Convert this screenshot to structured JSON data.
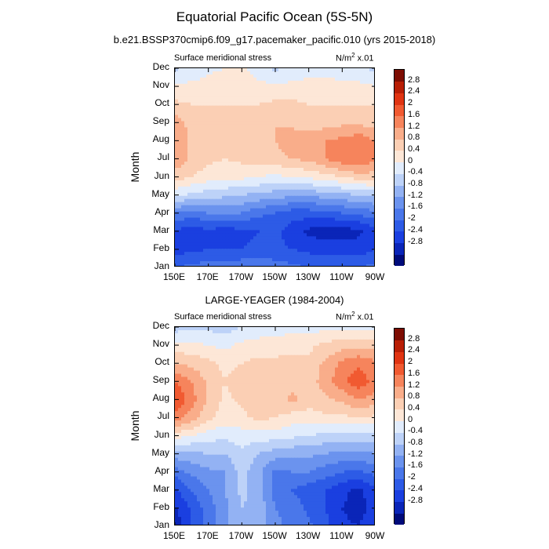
{
  "title": "Equatorial Pacific Ocean (5S-5N)",
  "colors": {
    "levels": [
      -3.2,
      -2.8,
      -2.4,
      -2.0,
      -1.6,
      -1.2,
      -0.8,
      -0.4,
      0.0,
      0.4,
      0.8,
      1.2,
      1.6,
      2.0,
      2.4,
      2.8,
      3.2
    ],
    "fills": [
      "#000b7a",
      "#0a25b8",
      "#1a3fe0",
      "#2d5be6",
      "#4a77ea",
      "#6b93ee",
      "#93b2f3",
      "#bdd2f8",
      "#e1ecfc",
      "#fde7d7",
      "#fbcfb4",
      "#f9ad8a",
      "#f6845c",
      "#f15a31",
      "#e03412",
      "#b81e05",
      "#7d0d02"
    ]
  },
  "chart_data": [
    {
      "type": "heatmap",
      "title": "b.e21.BSSP370cmip6.f09_g17.pacemaker_pacific.010 (yrs 2015-2018)",
      "left_label": "Surface meridional stress",
      "right_label_base": "N/m",
      "right_label_sup": "2",
      "right_label_tail": " x.01",
      "ylabel": "Month",
      "x_tick_labels": [
        "150E",
        "170E",
        "170W",
        "150W",
        "130W",
        "110W",
        "90W"
      ],
      "y_tick_labels": [
        "Jan",
        "Feb",
        "Mar",
        "Apr",
        "May",
        "Jun",
        "Jul",
        "Aug",
        "Sep",
        "Oct",
        "Nov",
        "Dec"
      ],
      "colorbar_labels": [
        "-2.8",
        "-2.4",
        "-2",
        "-1.6",
        "-1.2",
        "-0.8",
        "-0.4",
        "0",
        "0.4",
        "0.8",
        "1.2",
        "1.6",
        "2",
        "2.4",
        "2.8"
      ],
      "x": [
        150,
        160,
        170,
        180,
        190,
        200,
        210,
        220,
        230,
        240,
        250,
        260,
        270
      ],
      "y": [
        "Jan",
        "Feb",
        "Mar",
        "Apr",
        "May",
        "Jun",
        "Jul",
        "Aug",
        "Sep",
        "Oct",
        "Nov",
        "Dec"
      ],
      "z": [
        [
          -1.6,
          -1.5,
          -1.4,
          -1.4,
          -1.3,
          -1.3,
          -1.4,
          -1.5,
          -1.6,
          -1.7,
          -1.6,
          -1.6,
          -1.5
        ],
        [
          -2.2,
          -2.1,
          -2.0,
          -2.0,
          -2.0,
          -1.9,
          -1.9,
          -2.0,
          -2.1,
          -2.2,
          -2.2,
          -2.2,
          -2.0
        ],
        [
          -2.1,
          -2.2,
          -2.1,
          -2.2,
          -2.1,
          -2.0,
          -1.9,
          -2.2,
          -2.5,
          -2.6,
          -2.6,
          -2.5,
          -2.2
        ],
        [
          -1.2,
          -1.4,
          -1.2,
          -1.2,
          -1.2,
          -1.5,
          -1.6,
          -1.8,
          -1.8,
          -1.8,
          -1.6,
          -1.5,
          -1.3
        ],
        [
          0.1,
          -0.1,
          -0.2,
          -0.3,
          -0.4,
          -0.5,
          -0.6,
          -0.7,
          -0.7,
          -0.6,
          -0.5,
          -0.4,
          -0.3
        ],
        [
          1.0,
          0.8,
          0.6,
          0.5,
          0.5,
          0.4,
          0.3,
          0.4,
          0.5,
          0.6,
          0.8,
          1.0,
          1.0
        ],
        [
          1.5,
          1.1,
          0.9,
          0.8,
          0.9,
          1.0,
          1.1,
          1.2,
          1.3,
          1.6,
          1.9,
          2.0,
          1.7
        ],
        [
          1.6,
          1.1,
          0.9,
          0.8,
          0.9,
          1.0,
          1.2,
          1.4,
          1.4,
          1.6,
          1.7,
          1.9,
          1.6
        ],
        [
          1.5,
          1.0,
          0.8,
          0.8,
          1.0,
          1.2,
          1.2,
          1.1,
          1.0,
          1.0,
          1.1,
          1.1,
          1.0
        ],
        [
          0.9,
          0.8,
          0.8,
          0.8,
          0.8,
          0.8,
          0.9,
          0.9,
          0.8,
          0.8,
          0.8,
          0.8,
          0.8
        ],
        [
          0.5,
          0.5,
          0.6,
          0.6,
          0.6,
          0.5,
          0.5,
          0.5,
          0.5,
          0.5,
          0.5,
          0.5,
          0.4
        ],
        [
          -0.1,
          0.1,
          0.3,
          0.4,
          0.5,
          0.2,
          -0.1,
          0.1,
          0.3,
          0.3,
          0.2,
          0.1,
          -0.1
        ]
      ]
    },
    {
      "type": "heatmap",
      "title": "LARGE-YEAGER (1984-2004)",
      "left_label": "Surface meridional stress",
      "right_label_base": "N/m",
      "right_label_sup": "2",
      "right_label_tail": " x.01",
      "ylabel": "Month",
      "x_tick_labels": [
        "150E",
        "170E",
        "170W",
        "150W",
        "130W",
        "110W",
        "90W"
      ],
      "y_tick_labels": [
        "Jan",
        "Feb",
        "Mar",
        "Apr",
        "May",
        "Jun",
        "Jul",
        "Aug",
        "Sep",
        "Oct",
        "Nov",
        "Dec"
      ],
      "colorbar_labels": [
        "2.8",
        "2.4",
        "2",
        "1.6",
        "1.2",
        "0.8",
        "0.4",
        "0",
        "-0.4",
        "-0.8",
        "-1.2",
        "-1.6",
        "-2",
        "-2.4",
        "-2.8"
      ],
      "x": [
        150,
        160,
        170,
        180,
        190,
        200,
        210,
        220,
        230,
        240,
        250,
        260,
        270
      ],
      "y": [
        "Jan",
        "Feb",
        "Mar",
        "Apr",
        "May",
        "Jun",
        "Jul",
        "Aug",
        "Sep",
        "Oct",
        "Nov",
        "Dec"
      ],
      "z": [
        [
          -2.7,
          -2.0,
          -1.4,
          -0.9,
          -0.5,
          -0.6,
          -1.1,
          -1.3,
          -1.5,
          -1.9,
          -2.3,
          -2.4,
          -2.0
        ],
        [
          -2.5,
          -1.9,
          -1.4,
          -0.9,
          -0.4,
          -0.5,
          -1.2,
          -1.4,
          -1.7,
          -2.0,
          -2.4,
          -2.6,
          -2.2
        ],
        [
          -2.1,
          -1.6,
          -1.2,
          -0.8,
          -0.3,
          -0.6,
          -1.4,
          -1.6,
          -1.8,
          -2.0,
          -2.3,
          -2.5,
          -2.1
        ],
        [
          -1.4,
          -1.1,
          -0.9,
          -0.8,
          -0.2,
          -0.7,
          -1.3,
          -1.2,
          -1.2,
          -1.4,
          -1.6,
          -1.7,
          -1.4
        ],
        [
          -0.6,
          -0.5,
          -0.4,
          -0.4,
          -0.1,
          -0.4,
          -0.6,
          -0.7,
          -0.7,
          -0.8,
          -0.9,
          -0.9,
          -0.8
        ],
        [
          0.6,
          0.4,
          0.2,
          0.1,
          0.2,
          0.2,
          0.2,
          0.1,
          0.0,
          -0.1,
          -0.2,
          -0.2,
          -0.2
        ],
        [
          1.8,
          1.4,
          0.9,
          0.6,
          0.7,
          0.9,
          0.8,
          0.6,
          0.6,
          0.7,
          0.7,
          0.8,
          0.7
        ],
        [
          2.4,
          1.8,
          1.1,
          0.7,
          0.9,
          1.1,
          1.0,
          1.3,
          1.0,
          1.1,
          1.3,
          1.6,
          1.4
        ],
        [
          2.0,
          1.6,
          1.1,
          0.8,
          1.0,
          1.1,
          1.0,
          1.0,
          1.0,
          1.4,
          1.9,
          2.3,
          1.8
        ],
        [
          1.2,
          1.1,
          0.9,
          0.7,
          0.8,
          0.9,
          0.9,
          0.9,
          0.9,
          1.3,
          1.7,
          1.9,
          1.7
        ],
        [
          0.5,
          0.5,
          0.4,
          0.3,
          0.5,
          0.6,
          0.6,
          0.7,
          0.7,
          0.9,
          1.0,
          1.1,
          1.0
        ],
        [
          -0.2,
          -0.1,
          -0.1,
          -0.2,
          0.0,
          0.1,
          0.2,
          0.2,
          0.2,
          0.3,
          0.3,
          0.3,
          0.3
        ]
      ]
    }
  ]
}
